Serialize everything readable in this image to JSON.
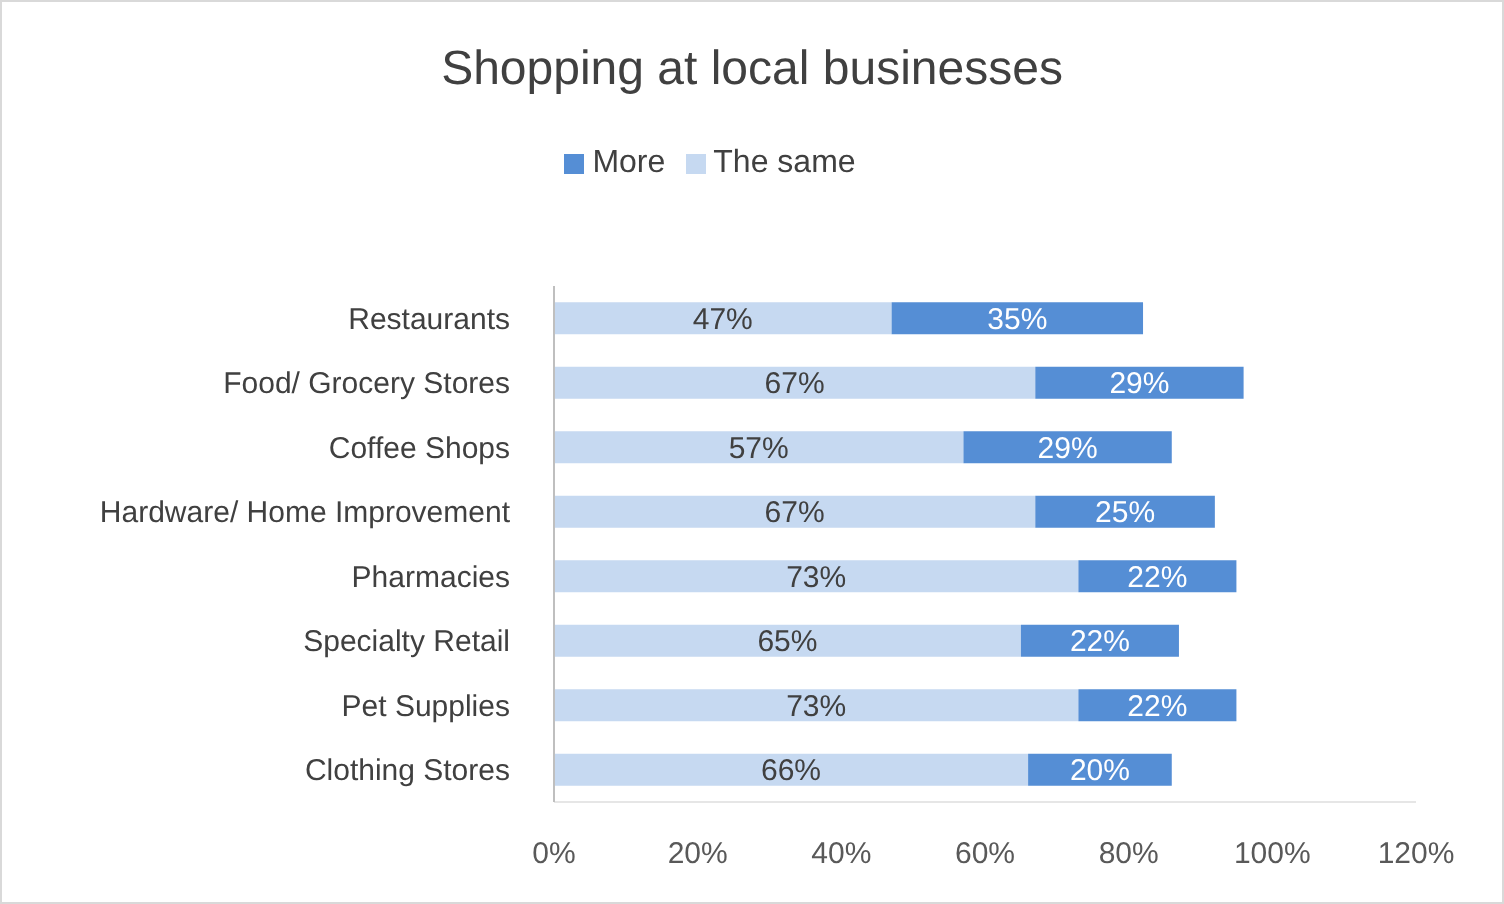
{
  "chart_data": {
    "type": "bar",
    "title": "Shopping at local businesses",
    "orientation": "horizontal",
    "stacked": true,
    "categories": [
      "Restaurants",
      "Food/ Grocery Stores",
      "Coffee Shops",
      "Hardware/ Home Improvement",
      "Pharmacies",
      "Specialty Retail",
      "Pet Supplies",
      "Clothing Stores"
    ],
    "series": [
      {
        "name": "The same",
        "color": "#c6d9f1",
        "values": [
          47,
          67,
          57,
          67,
          73,
          65,
          73,
          66
        ],
        "value_labels": [
          "47%",
          "67%",
          "57%",
          "67%",
          "73%",
          "65%",
          "73%",
          "66%"
        ]
      },
      {
        "name": "More",
        "color": "#558ed5",
        "values": [
          35,
          29,
          29,
          25,
          22,
          22,
          22,
          20
        ],
        "value_labels": [
          "35%",
          "29%",
          "29%",
          "25%",
          "22%",
          "22%",
          "22%",
          "20%"
        ]
      }
    ],
    "xlim": [
      0,
      120
    ],
    "xticks": [
      {
        "value": 0,
        "label": "0%"
      },
      {
        "value": 20,
        "label": "20%"
      },
      {
        "value": 40,
        "label": "40%"
      },
      {
        "value": 60,
        "label": "60%"
      },
      {
        "value": 80,
        "label": "80%"
      },
      {
        "value": 100,
        "label": "100%"
      },
      {
        "value": 120,
        "label": "120%"
      }
    ],
    "grid": false,
    "legend": "top"
  }
}
